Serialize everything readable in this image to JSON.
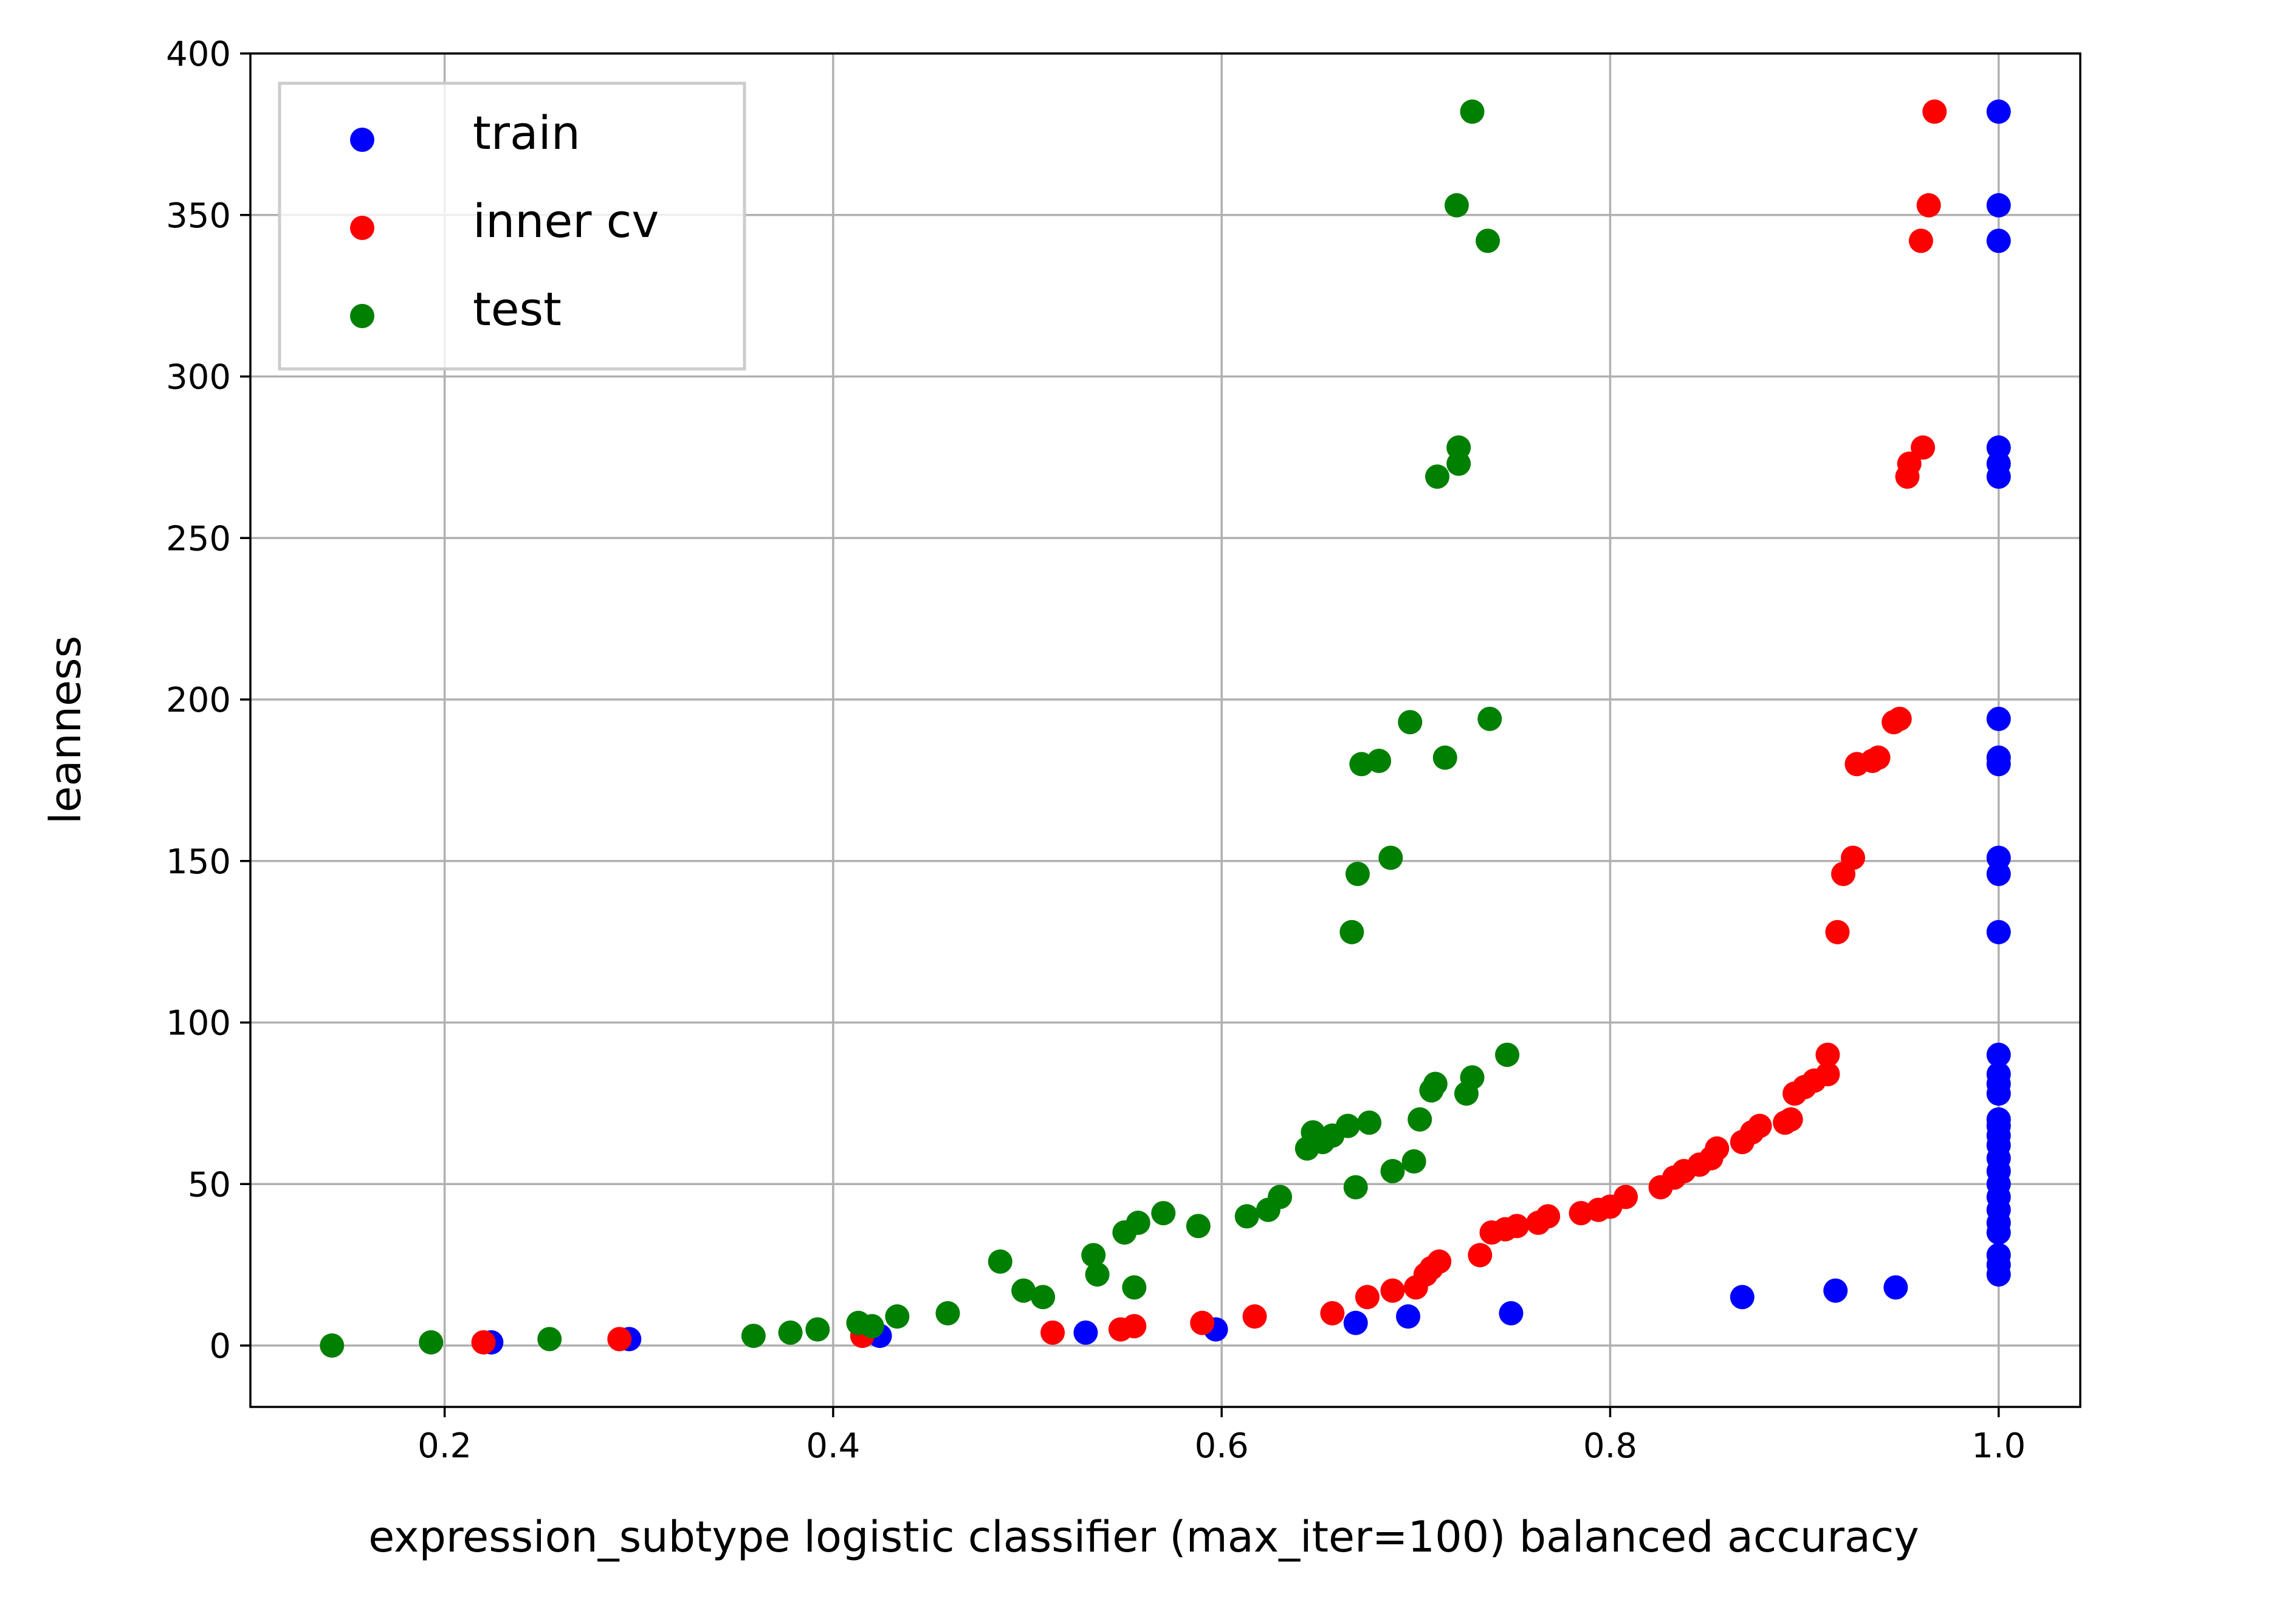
{
  "chart_data": {
    "type": "scatter",
    "xlabel": "expression_subtype logistic classifier (max_iter=100) balanced accuracy",
    "ylabel": "leanness",
    "xlim": [
      0.1,
      1.042
    ],
    "ylim": [
      -19,
      400
    ],
    "grid": true,
    "legend_position": "top-left",
    "x_ticks": [
      0.2,
      0.4,
      0.6,
      0.8,
      1.0
    ],
    "x_tick_labels": [
      "0.2",
      "0.4",
      "0.6",
      "0.8",
      "1.0"
    ],
    "y_ticks": [
      0,
      50,
      100,
      150,
      200,
      250,
      300,
      350,
      400
    ],
    "y_tick_labels": [
      "0",
      "50",
      "100",
      "150",
      "200",
      "250",
      "300",
      "350",
      "400"
    ],
    "series": [
      {
        "name": "train",
        "color": "#0000ff",
        "points": [
          [
            1.0,
            382
          ],
          [
            1.0,
            353
          ],
          [
            1.0,
            342
          ],
          [
            1.0,
            278
          ],
          [
            1.0,
            273
          ],
          [
            1.0,
            269
          ],
          [
            1.0,
            194
          ],
          [
            1.0,
            182
          ],
          [
            1.0,
            180
          ],
          [
            1.0,
            151
          ],
          [
            1.0,
            146
          ],
          [
            1.0,
            128
          ],
          [
            1.0,
            90
          ],
          [
            1.0,
            84
          ],
          [
            1.0,
            81
          ],
          [
            1.0,
            78
          ],
          [
            1.0,
            70
          ],
          [
            1.0,
            68
          ],
          [
            1.0,
            65
          ],
          [
            1.0,
            62
          ],
          [
            1.0,
            58
          ],
          [
            1.0,
            54
          ],
          [
            1.0,
            50
          ],
          [
            1.0,
            46
          ],
          [
            1.0,
            42
          ],
          [
            1.0,
            38
          ],
          [
            1.0,
            35
          ],
          [
            1.0,
            28
          ],
          [
            1.0,
            25
          ],
          [
            1.0,
            22
          ],
          [
            0.947,
            18
          ],
          [
            0.916,
            17
          ],
          [
            0.868,
            15
          ],
          [
            0.749,
            10
          ],
          [
            0.696,
            9
          ],
          [
            0.669,
            7
          ],
          [
            0.597,
            5
          ],
          [
            0.53,
            4
          ],
          [
            0.424,
            3
          ],
          [
            0.295,
            2
          ],
          [
            0.224,
            1
          ]
        ]
      },
      {
        "name": "inner cv",
        "color": "#ff0000",
        "points": [
          [
            0.967,
            382
          ],
          [
            0.964,
            353
          ],
          [
            0.96,
            342
          ],
          [
            0.961,
            278
          ],
          [
            0.954,
            273
          ],
          [
            0.953,
            269
          ],
          [
            0.949,
            194
          ],
          [
            0.946,
            193
          ],
          [
            0.938,
            182
          ],
          [
            0.935,
            181
          ],
          [
            0.927,
            180
          ],
          [
            0.925,
            151
          ],
          [
            0.92,
            146
          ],
          [
            0.917,
            128
          ],
          [
            0.912,
            90
          ],
          [
            0.912,
            84
          ],
          [
            0.905,
            82
          ],
          [
            0.9,
            80
          ],
          [
            0.895,
            78
          ],
          [
            0.893,
            70
          ],
          [
            0.89,
            69
          ],
          [
            0.877,
            68
          ],
          [
            0.873,
            66
          ],
          [
            0.868,
            63
          ],
          [
            0.855,
            61
          ],
          [
            0.852,
            58
          ],
          [
            0.846,
            56
          ],
          [
            0.838,
            54
          ],
          [
            0.833,
            52
          ],
          [
            0.826,
            49
          ],
          [
            0.808,
            46
          ],
          [
            0.8,
            43
          ],
          [
            0.794,
            42
          ],
          [
            0.785,
            41
          ],
          [
            0.768,
            40
          ],
          [
            0.763,
            38
          ],
          [
            0.752,
            37
          ],
          [
            0.746,
            36
          ],
          [
            0.739,
            35
          ],
          [
            0.733,
            28
          ],
          [
            0.712,
            26
          ],
          [
            0.708,
            24
          ],
          [
            0.705,
            22
          ],
          [
            0.7,
            18
          ],
          [
            0.688,
            17
          ],
          [
            0.675,
            15
          ],
          [
            0.657,
            10
          ],
          [
            0.617,
            9
          ],
          [
            0.59,
            7
          ],
          [
            0.555,
            6
          ],
          [
            0.548,
            5
          ],
          [
            0.513,
            4
          ],
          [
            0.415,
            3
          ],
          [
            0.29,
            2
          ],
          [
            0.22,
            1
          ]
        ]
      },
      {
        "name": "test",
        "color": "#008000",
        "points": [
          [
            0.729,
            382
          ],
          [
            0.721,
            353
          ],
          [
            0.737,
            342
          ],
          [
            0.722,
            278
          ],
          [
            0.722,
            273
          ],
          [
            0.711,
            269
          ],
          [
            0.738,
            194
          ],
          [
            0.697,
            193
          ],
          [
            0.715,
            182
          ],
          [
            0.681,
            181
          ],
          [
            0.672,
            180
          ],
          [
            0.687,
            151
          ],
          [
            0.67,
            146
          ],
          [
            0.667,
            128
          ],
          [
            0.747,
            90
          ],
          [
            0.729,
            83
          ],
          [
            0.71,
            81
          ],
          [
            0.708,
            79
          ],
          [
            0.726,
            78
          ],
          [
            0.702,
            70
          ],
          [
            0.676,
            69
          ],
          [
            0.665,
            68
          ],
          [
            0.657,
            65
          ],
          [
            0.647,
            66
          ],
          [
            0.652,
            63
          ],
          [
            0.644,
            61
          ],
          [
            0.699,
            57
          ],
          [
            0.688,
            54
          ],
          [
            0.669,
            49
          ],
          [
            0.63,
            46
          ],
          [
            0.624,
            42
          ],
          [
            0.613,
            40
          ],
          [
            0.57,
            41
          ],
          [
            0.588,
            37
          ],
          [
            0.557,
            38
          ],
          [
            0.55,
            35
          ],
          [
            0.534,
            28
          ],
          [
            0.486,
            26
          ],
          [
            0.536,
            22
          ],
          [
            0.555,
            18
          ],
          [
            0.498,
            17
          ],
          [
            0.508,
            15
          ],
          [
            0.459,
            10
          ],
          [
            0.433,
            9
          ],
          [
            0.413,
            7
          ],
          [
            0.42,
            6
          ],
          [
            0.392,
            5
          ],
          [
            0.378,
            4
          ],
          [
            0.359,
            3
          ],
          [
            0.254,
            2
          ],
          [
            0.193,
            1
          ],
          [
            0.142,
            0
          ]
        ]
      }
    ]
  }
}
